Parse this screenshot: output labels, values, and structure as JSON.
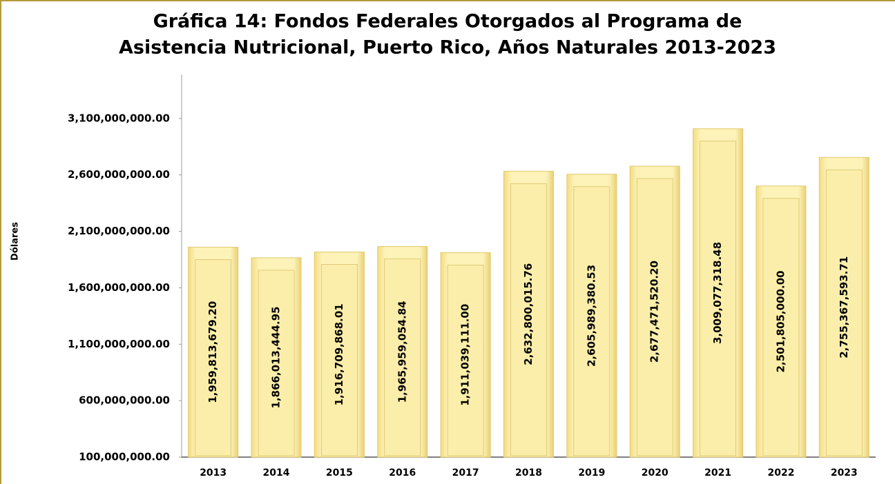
{
  "chart_data": {
    "type": "bar",
    "title": "Gráfica 14: Fondos Federales Otorgados al Programa de",
    "subtitle": "Asistencia Nutricional, Puerto Rico, Años Naturales 2013-2023",
    "y_label": "Dólares",
    "categories": [
      "2013",
      "2014",
      "2015",
      "2016",
      "2017",
      "2018",
      "2019",
      "2020",
      "2021",
      "2022",
      "2023"
    ],
    "values": [
      1959813679.2,
      1866013444.95,
      1916709868.01,
      1965959054.84,
      1911039111.0,
      2632800015.76,
      2605989380.53,
      2677471520.2,
      3009077318.48,
      2501805000.0,
      2755367593.71
    ],
    "value_labels": [
      "1,959,813,679.20",
      "1,866,013,444.95",
      "1,916,709,868.01",
      "1,965,959,054.84",
      "1,911,039,111.00",
      "2,632,800,015.76",
      "2,605,989,380.53",
      "2,677,471,520.20",
      "3,009,077,318.48",
      "2,501,805,000.00",
      "2,755,367,593.71"
    ],
    "color": "#fbeeaa",
    "ylim": [
      100000000,
      3490000000
    ],
    "yticks": [
      {
        "value": 100000000,
        "label": "100,000,000.00"
      },
      {
        "value": 600000000,
        "label": "600,000,000.00"
      },
      {
        "value": 1100000000,
        "label": "1,100,000,000.00"
      },
      {
        "value": 1600000000,
        "label": "1,600,000,000.00"
      },
      {
        "value": 2100000000,
        "label": "2,100,000,000.00"
      },
      {
        "value": 2600000000,
        "label": "2,600,000,000.00"
      },
      {
        "value": 3100000000,
        "label": "3,100,000,000.00"
      }
    ],
    "grid": false
  }
}
